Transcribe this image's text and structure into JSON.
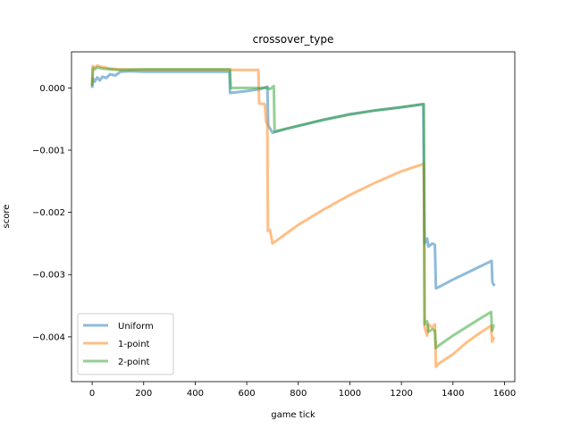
{
  "chart_data": {
    "type": "line",
    "title": "crossover_type",
    "xlabel": "game tick",
    "ylabel": "score",
    "xlim": [
      -80,
      1640
    ],
    "ylim": [
      -0.00472,
      0.00058
    ],
    "xticks": [
      0,
      200,
      400,
      600,
      800,
      1000,
      1200,
      1400,
      1600
    ],
    "xtick_labels": [
      "0",
      "200",
      "400",
      "600",
      "800",
      "1000",
      "1200",
      "1400",
      "1600"
    ],
    "yticks": [
      0.0,
      -0.001,
      -0.002,
      -0.003,
      -0.004
    ],
    "ytick_labels": [
      "0.000",
      "−0.001",
      "−0.002",
      "−0.003",
      "−0.004"
    ],
    "grid": false,
    "legend_position": "lower-left",
    "series": [
      {
        "name": "Uniform",
        "color": "#1f77b4",
        "points": [
          [
            0,
            0.0
          ],
          [
            3,
            0.00015
          ],
          [
            10,
            0.0001
          ],
          [
            20,
            0.00017
          ],
          [
            30,
            0.00012
          ],
          [
            40,
            0.00018
          ],
          [
            55,
            0.00016
          ],
          [
            70,
            0.00022
          ],
          [
            90,
            0.0002
          ],
          [
            110,
            0.00026
          ],
          [
            150,
            0.00027
          ],
          [
            200,
            0.00026
          ],
          [
            300,
            0.00026
          ],
          [
            400,
            0.00026
          ],
          [
            500,
            0.00026
          ],
          [
            533,
            0.00026
          ],
          [
            535,
            -8e-05
          ],
          [
            600,
            -5e-05
          ],
          [
            650,
            -2e-05
          ],
          [
            680,
            2e-05
          ],
          [
            683,
            -0.0006
          ],
          [
            700,
            -0.00072
          ],
          [
            750,
            -0.00066
          ],
          [
            800,
            -0.00061
          ],
          [
            900,
            -0.00051
          ],
          [
            1000,
            -0.00042
          ],
          [
            1100,
            -0.00036
          ],
          [
            1200,
            -0.00031
          ],
          [
            1285,
            -0.00026
          ],
          [
            1290,
            -0.0025
          ],
          [
            1300,
            -0.00242
          ],
          [
            1305,
            -0.00255
          ],
          [
            1320,
            -0.0025
          ],
          [
            1330,
            -0.00252
          ],
          [
            1334,
            -0.00322
          ],
          [
            1345,
            -0.0032
          ],
          [
            1400,
            -0.00308
          ],
          [
            1450,
            -0.00298
          ],
          [
            1500,
            -0.00288
          ],
          [
            1550,
            -0.00278
          ],
          [
            1553,
            -0.00312
          ],
          [
            1558,
            -0.00316
          ],
          [
            1562,
            -0.00318
          ]
        ]
      },
      {
        "name": "1-point",
        "color": "#ff7f0e",
        "points": [
          [
            0,
            5e-05
          ],
          [
            3,
            0.00035
          ],
          [
            10,
            0.00033
          ],
          [
            20,
            0.00036
          ],
          [
            35,
            0.00034
          ],
          [
            50,
            0.00033
          ],
          [
            70,
            0.00031
          ],
          [
            100,
            0.0003
          ],
          [
            200,
            0.00029
          ],
          [
            300,
            0.00029
          ],
          [
            400,
            0.00029
          ],
          [
            500,
            0.00029
          ],
          [
            600,
            0.00029
          ],
          [
            645,
            0.00029
          ],
          [
            648,
            -0.00025
          ],
          [
            670,
            -0.00026
          ],
          [
            675,
            -0.00055
          ],
          [
            680,
            -0.00058
          ],
          [
            682,
            -0.0023
          ],
          [
            690,
            -0.00228
          ],
          [
            700,
            -0.0025
          ],
          [
            750,
            -0.00235
          ],
          [
            800,
            -0.0022
          ],
          [
            900,
            -0.00195
          ],
          [
            1000,
            -0.00172
          ],
          [
            1100,
            -0.00152
          ],
          [
            1200,
            -0.00134
          ],
          [
            1287,
            -0.00122
          ],
          [
            1290,
            -0.00385
          ],
          [
            1300,
            -0.00398
          ],
          [
            1305,
            -0.0038
          ],
          [
            1320,
            -0.00385
          ],
          [
            1330,
            -0.0038
          ],
          [
            1334,
            -0.00448
          ],
          [
            1345,
            -0.00443
          ],
          [
            1400,
            -0.00428
          ],
          [
            1450,
            -0.0041
          ],
          [
            1500,
            -0.00395
          ],
          [
            1548,
            -0.00382
          ],
          [
            1552,
            -0.00408
          ],
          [
            1558,
            -0.00402
          ],
          [
            1562,
            -0.00403
          ]
        ]
      },
      {
        "name": "2-point",
        "color": "#2ca02c",
        "points": [
          [
            0,
            3e-05
          ],
          [
            3,
            0.00032
          ],
          [
            10,
            0.0003
          ],
          [
            20,
            0.00033
          ],
          [
            40,
            0.00031
          ],
          [
            70,
            0.0003
          ],
          [
            100,
            0.00029
          ],
          [
            200,
            0.0003
          ],
          [
            300,
            0.0003
          ],
          [
            400,
            0.0003
          ],
          [
            500,
            0.0003
          ],
          [
            535,
            0.0003
          ],
          [
            538,
            0.0
          ],
          [
            600,
            0.0
          ],
          [
            680,
            0.0
          ],
          [
            690,
            -2e-05
          ],
          [
            705,
            3e-05
          ],
          [
            708,
            -0.0007
          ],
          [
            750,
            -0.00066
          ],
          [
            800,
            -0.00061
          ],
          [
            900,
            -0.00051
          ],
          [
            1000,
            -0.00043
          ],
          [
            1100,
            -0.00036
          ],
          [
            1200,
            -0.00031
          ],
          [
            1287,
            -0.00026
          ],
          [
            1290,
            -0.0038
          ],
          [
            1300,
            -0.00375
          ],
          [
            1305,
            -0.00392
          ],
          [
            1320,
            -0.00388
          ],
          [
            1330,
            -0.0039
          ],
          [
            1334,
            -0.00418
          ],
          [
            1345,
            -0.00414
          ],
          [
            1400,
            -0.00398
          ],
          [
            1450,
            -0.00385
          ],
          [
            1500,
            -0.00372
          ],
          [
            1548,
            -0.0036
          ],
          [
            1552,
            -0.0039
          ],
          [
            1558,
            -0.00382
          ],
          [
            1562,
            -0.00382
          ]
        ]
      }
    ]
  }
}
